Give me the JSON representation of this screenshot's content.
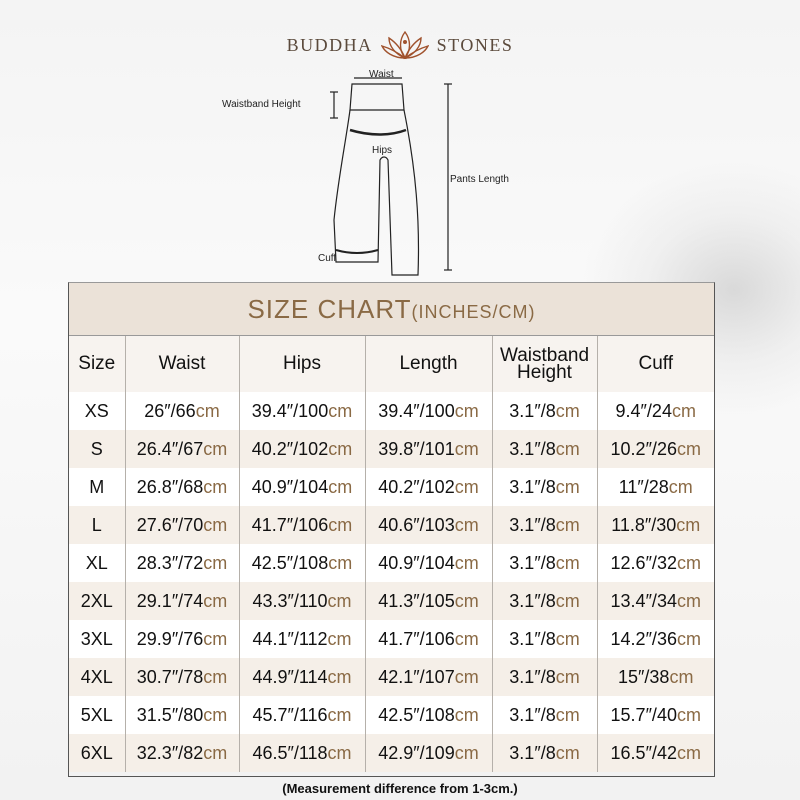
{
  "brand": {
    "left": "BUDDHA",
    "right": "STONES"
  },
  "diagram": {
    "waist": "Waist",
    "waistband_height": "Waistband Height",
    "hips": "Hips",
    "pants_length": "Pants Length",
    "cuff": "Cuff"
  },
  "table": {
    "title": "SIZE CHART",
    "title_unit": "(INCHES/CM)",
    "headers": [
      "Size",
      "Waist",
      "Hips",
      "Length",
      "Waistband Height",
      "Cuff"
    ],
    "unit": "cm",
    "rows": [
      {
        "size": "XS",
        "cells": [
          "26″/66",
          "39.4″/100",
          "39.4″/100",
          "3.1″/8",
          "9.4″/24"
        ]
      },
      {
        "size": "S",
        "cells": [
          "26.4″/67",
          "40.2″/102",
          "39.8″/101",
          "3.1″/8",
          "10.2″/26"
        ]
      },
      {
        "size": "M",
        "cells": [
          "26.8″/68",
          "40.9″/104",
          "40.2″/102",
          "3.1″/8",
          "11″/28"
        ]
      },
      {
        "size": "L",
        "cells": [
          "27.6″/70",
          "41.7″/106",
          "40.6″/103",
          "3.1″/8",
          "11.8″/30"
        ]
      },
      {
        "size": "XL",
        "cells": [
          "28.3″/72",
          "42.5″/108",
          "40.9″/104",
          "3.1″/8",
          "12.6″/32"
        ]
      },
      {
        "size": "2XL",
        "cells": [
          "29.1″/74",
          "43.3″/110",
          "41.3″/105",
          "3.1″/8",
          "13.4″/34"
        ]
      },
      {
        "size": "3XL",
        "cells": [
          "29.9″/76",
          "44.1″/112",
          "41.7″/106",
          "3.1″/8",
          "14.2″/36"
        ]
      },
      {
        "size": "4XL",
        "cells": [
          "30.7″/78",
          "44.9″/114",
          "42.1″/107",
          "3.1″/8",
          "15″/38"
        ]
      },
      {
        "size": "5XL",
        "cells": [
          "31.5″/80",
          "45.7″/116",
          "42.5″/108",
          "3.1″/8",
          "15.7″/40"
        ]
      },
      {
        "size": "6XL",
        "cells": [
          "32.3″/82",
          "46.5″/118",
          "42.9″/109",
          "3.1″/8",
          "16.5″/42"
        ]
      }
    ]
  },
  "note": "(Measurement difference from 1-3cm.)",
  "colors": {
    "accent": "#8a6a45",
    "title_bg": "#ebe2d8",
    "stripe": "#f5efe8"
  }
}
